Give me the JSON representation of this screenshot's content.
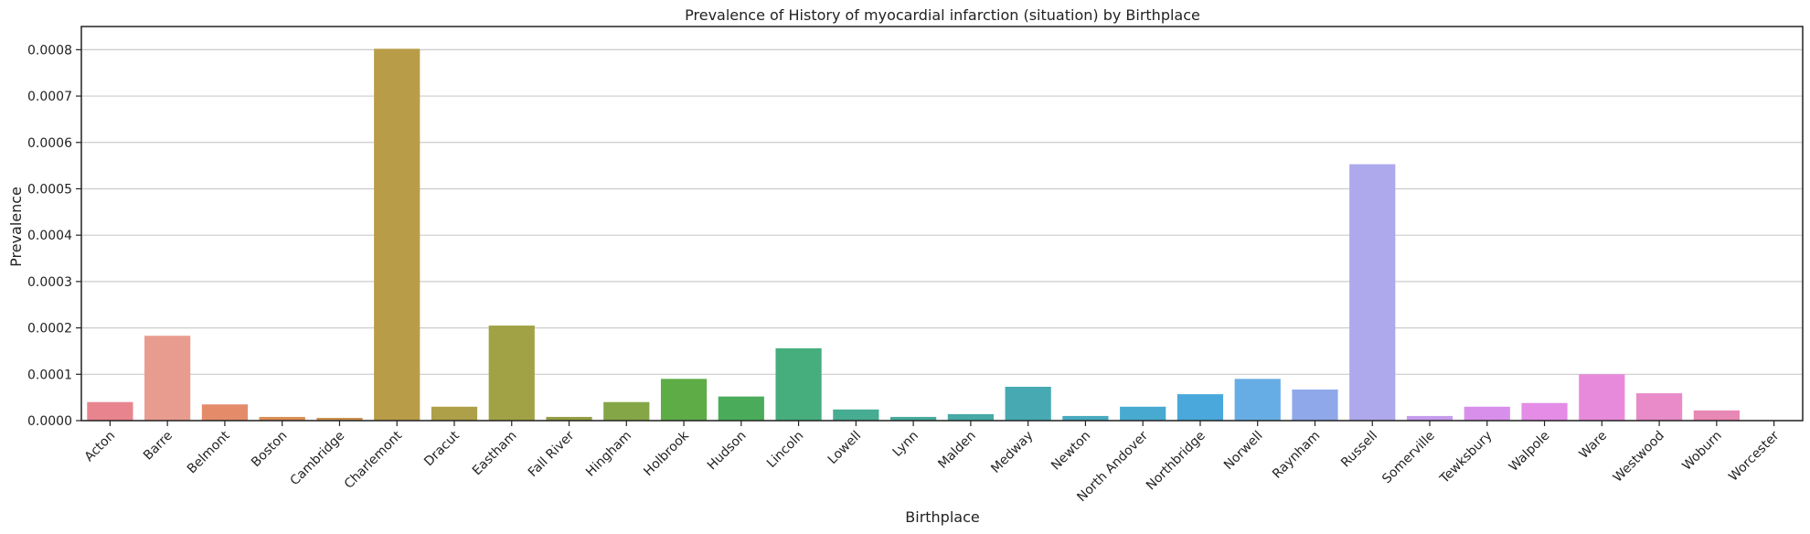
{
  "chart_data": {
    "type": "bar",
    "title": "Prevalence of History of myocardial infarction (situation) by Birthplace",
    "xlabel": "Birthplace",
    "ylabel": "Prevalence",
    "ylim": [
      0,
      0.00085
    ],
    "yticks": [
      "0.0000",
      "0.0001",
      "0.0002",
      "0.0003",
      "0.0004",
      "0.0005",
      "0.0006",
      "0.0007",
      "0.0008"
    ],
    "grid": "horizontal",
    "categories": [
      "Acton",
      "Barre",
      "Belmont",
      "Boston",
      "Cambridge",
      "Charlemont",
      "Dracut",
      "Eastham",
      "Fall River",
      "Hingham",
      "Holbrook",
      "Hudson",
      "Lincoln",
      "Lowell",
      "Lynn",
      "Malden",
      "Medway",
      "Newton",
      "North Andover",
      "Northbridge",
      "Norwell",
      "Raynham",
      "Russell",
      "Somerville",
      "Tewksbury",
      "Walpole",
      "Ware",
      "Westwood",
      "Woburn",
      "Worcester"
    ],
    "values": [
      4e-05,
      0.000183,
      3.5e-05,
      8e-06,
      6e-06,
      0.000802,
      3e-05,
      0.000205,
      8e-06,
      4e-05,
      9e-05,
      5.2e-05,
      0.000156,
      2.4e-05,
      8e-06,
      1.4e-05,
      7.3e-05,
      1e-05,
      3e-05,
      5.7e-05,
      9e-05,
      6.7e-05,
      0.000553,
      1e-05,
      3e-05,
      3.8e-05,
      0.0001,
      5.9e-05,
      2.2e-05,
      0.0
    ],
    "colors": [
      "#e8848e",
      "#e89c8f",
      "#e48c6a",
      "#d88e55",
      "#c9924d",
      "#b89c47",
      "#aea049",
      "#a0a245",
      "#949e45",
      "#84a646",
      "#5eac46",
      "#4aac5a",
      "#46ad7d",
      "#46ac92",
      "#47aa9c",
      "#47aaa6",
      "#47aab2",
      "#48aac0",
      "#48aad0",
      "#4aa8dc",
      "#66ade5",
      "#8fa8ea",
      "#aea8ec",
      "#c69ced",
      "#d88fec",
      "#e48ce6",
      "#e88adb",
      "#e88bc8",
      "#e888b4",
      "#e8889c"
    ]
  }
}
